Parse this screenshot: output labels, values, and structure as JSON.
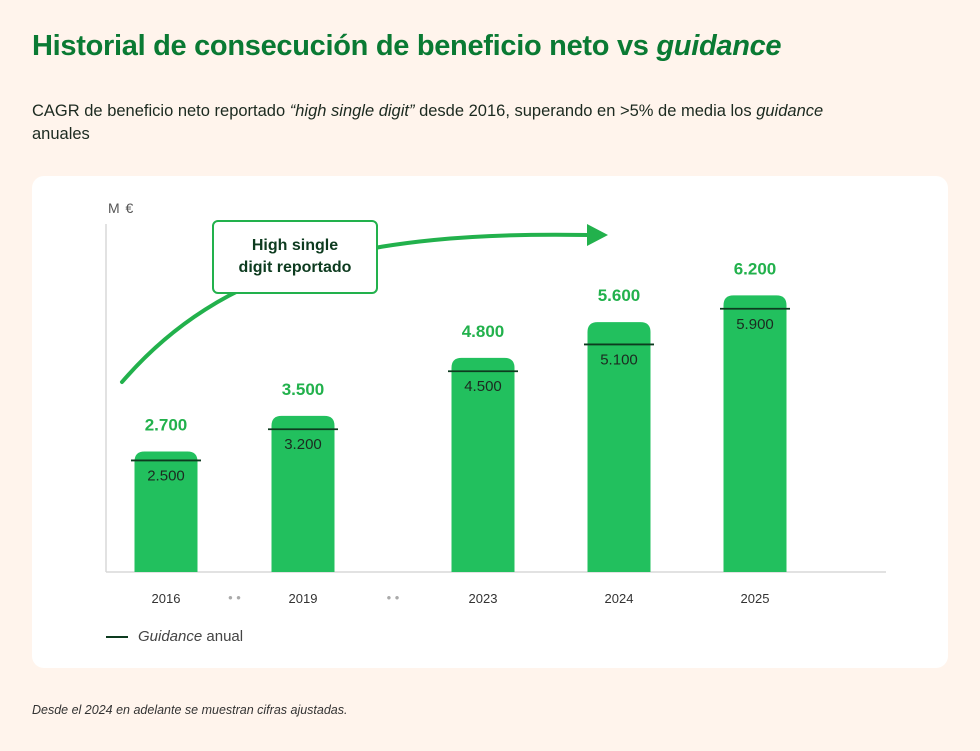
{
  "header": {
    "title_main": "Historial de consecución de beneficio neto vs ",
    "title_italic": "guidance",
    "subtitle_part1": "CAGR de beneficio neto reportado ",
    "subtitle_italic1": "“high single digit”",
    "subtitle_part2": " desde 2016, superando en >5% de media los ",
    "subtitle_italic2": "guidance",
    "subtitle_part3": " anuales"
  },
  "callout": {
    "line1": "High single",
    "line2": "digit reportado"
  },
  "legend": {
    "italic": "Guidance",
    "text": " anual"
  },
  "footnote": "Desde el 2024 en adelante se muestran cifras ajustadas.",
  "colors": {
    "bar": "#22C05E",
    "title": "#0A7A33",
    "guidance_line": "#0D3B1F",
    "background": "#FFF4EC"
  },
  "chart_data": {
    "type": "bar",
    "unit_label": "M €",
    "categories": [
      "2016",
      "2019",
      "2023",
      "2024",
      "2025"
    ],
    "gaps_after": [
      "2016",
      "2019"
    ],
    "gap_marker": "• •",
    "series": [
      {
        "name": "",
        "values": [
          2700,
          3500,
          4800,
          5600,
          6200
        ],
        "labels": [
          "2.700",
          "3.500",
          "4.800",
          "5.600",
          "6.200"
        ]
      },
      {
        "name": "Guidance anual",
        "values": [
          2500,
          3200,
          4500,
          5100,
          5900
        ],
        "labels": [
          "2.500",
          "3.200",
          "4.500",
          "5.100",
          "5.900"
        ]
      }
    ],
    "ylim": [
      0,
      7800
    ],
    "grid": false,
    "legend_position": "bottom-left"
  }
}
